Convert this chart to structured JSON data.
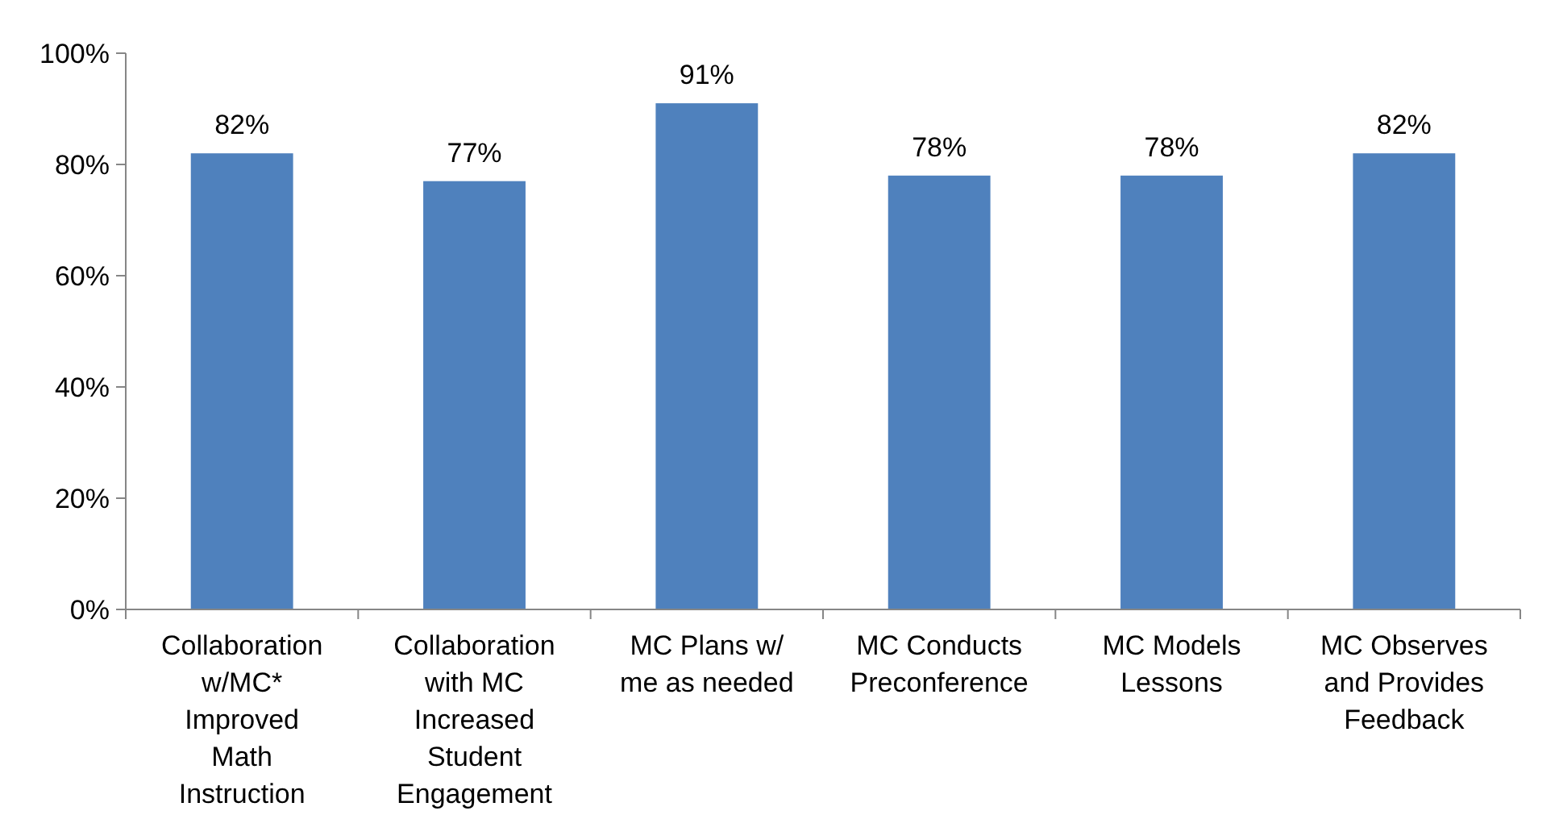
{
  "chart_data": {
    "type": "bar",
    "categories": [
      "Collaboration w/MC* Improved Math Instruction",
      "Collaboration with MC Increased Student Engagement",
      "MC Plans w/ me as needed",
      "MC Conducts Preconference",
      "MC Models Lessons",
      "MC Observes and Provides Feedback"
    ],
    "values": [
      82,
      77,
      91,
      78,
      78,
      82
    ],
    "value_labels": [
      "82%",
      "77%",
      "91%",
      "78%",
      "78%",
      "82%"
    ],
    "color": "#4f81bd",
    "ylim": [
      0,
      100
    ],
    "yticks": [
      {
        "value": 0,
        "label": "0%"
      },
      {
        "value": 20,
        "label": "20%"
      },
      {
        "value": 40,
        "label": "40%"
      },
      {
        "value": 60,
        "label": "60%"
      },
      {
        "value": 80,
        "label": "80%"
      },
      {
        "value": 100,
        "label": "100%"
      }
    ],
    "grid": false
  }
}
